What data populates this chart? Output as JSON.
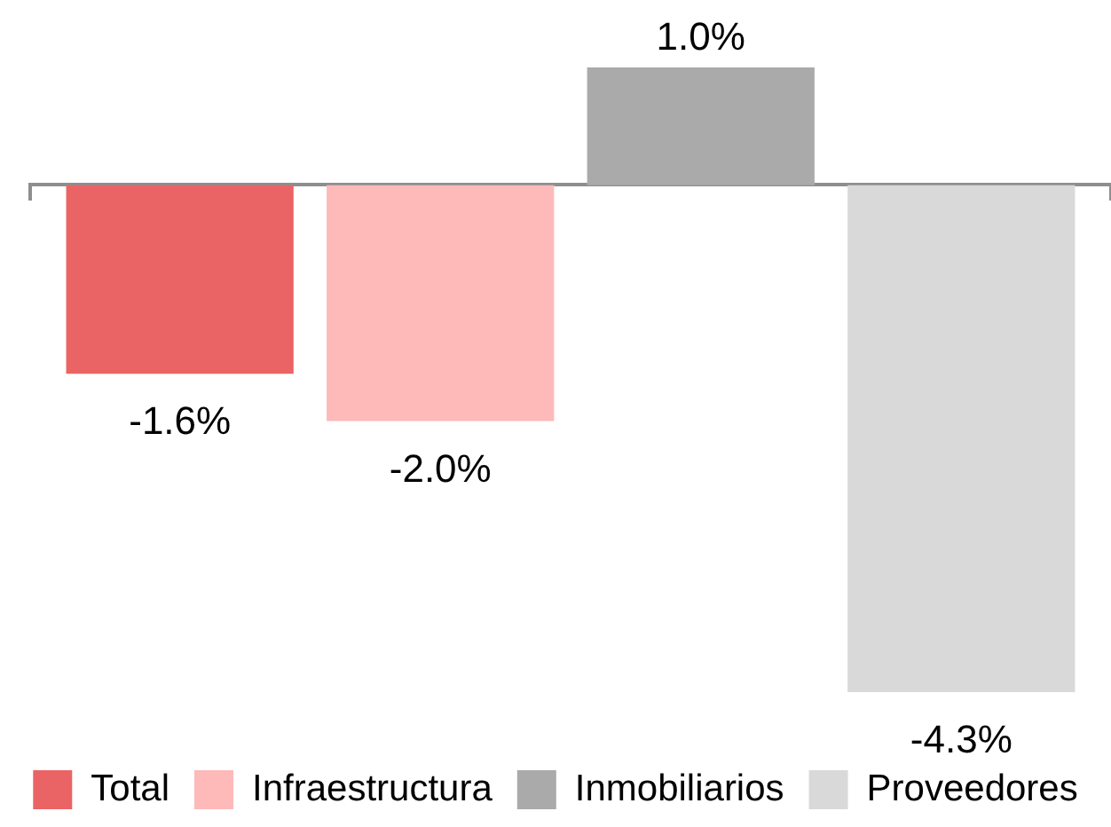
{
  "chart_data": {
    "type": "bar",
    "categories": [
      null
    ],
    "series": [
      {
        "name": "Total",
        "color": "#ea6465",
        "values": [
          -1.6
        ],
        "value_labels": [
          "-1.6%"
        ]
      },
      {
        "name": "Infraestructura",
        "color": "#feb9b9",
        "values": [
          -2.0
        ],
        "value_labels": [
          "-2.0%"
        ]
      },
      {
        "name": "Inmobiliarios",
        "color": "#aaaaaa",
        "values": [
          1.0
        ],
        "value_labels": [
          "1.0%"
        ]
      },
      {
        "name": "Proveedores",
        "color": "#d9d9d9",
        "values": [
          -4.3
        ],
        "value_labels": [
          "-4.3%"
        ]
      }
    ],
    "legend": "bottom",
    "tick_labels": false
  }
}
